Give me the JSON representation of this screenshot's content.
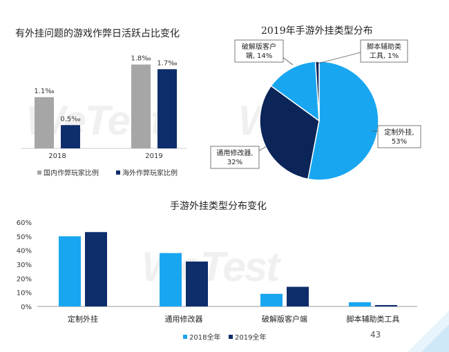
{
  "page_number": "43",
  "watermark": "WeTest",
  "colors": {
    "gray": "#a6a6a6",
    "navy": "#0e2d6b",
    "sky": "#18a6f0",
    "dark_navy": "#0b2559"
  },
  "chart_data": [
    {
      "type": "bar",
      "title": "有外挂问题的游戏作弊日活跃占比变化",
      "categories": [
        "2018",
        "2019"
      ],
      "series": [
        {
          "name": "国内作弊玩家比例",
          "values": [
            1.1,
            1.8
          ],
          "labels": [
            "1.1‰",
            "1.8‰"
          ],
          "color": "#a6a6a6"
        },
        {
          "name": "海外作弊玩家比例",
          "values": [
            0.5,
            1.7
          ],
          "labels": [
            "0.5‰",
            "1.7‰"
          ],
          "color": "#0e2d6b"
        }
      ],
      "ylim": [
        0,
        2.0
      ],
      "unit": "‰",
      "legend": "bottom"
    },
    {
      "type": "pie",
      "title": "2019年手游外挂类型分布",
      "slices": [
        {
          "name": "定制外挂",
          "value": 53,
          "label_name": "定制外挂,",
          "label_value": "53%",
          "color": "#18a6f0"
        },
        {
          "name": "通用修改器",
          "value": 32,
          "label_name": "通用修改器,",
          "label_value": "32%",
          "color": "#0b2559"
        },
        {
          "name": "破解版客户端",
          "value": 14,
          "label_name": "破解版客户",
          "label_value": "端, 14%",
          "color": "#18a6f0"
        },
        {
          "name": "脚本辅助类工具",
          "value": 1,
          "label_name": "脚本辅助类",
          "label_value": "工具, 1%",
          "color": "#0b2559"
        }
      ]
    },
    {
      "type": "bar",
      "title": "手游外挂类型分布变化",
      "categories": [
        "定制外挂",
        "通用修改器",
        "破解版客户端",
        "脚本辅助类工具"
      ],
      "series": [
        {
          "name": "2018全年",
          "values": [
            50,
            38,
            9,
            3
          ],
          "color": "#18a6f0"
        },
        {
          "name": "2019全年",
          "values": [
            53,
            32,
            14,
            1
          ],
          "color": "#0e2d6b"
        }
      ],
      "yticks": [
        "60%",
        "50%",
        "40%",
        "30%",
        "20%",
        "10%",
        "0%"
      ],
      "ylim": [
        0,
        60
      ],
      "legend": "bottom"
    }
  ]
}
